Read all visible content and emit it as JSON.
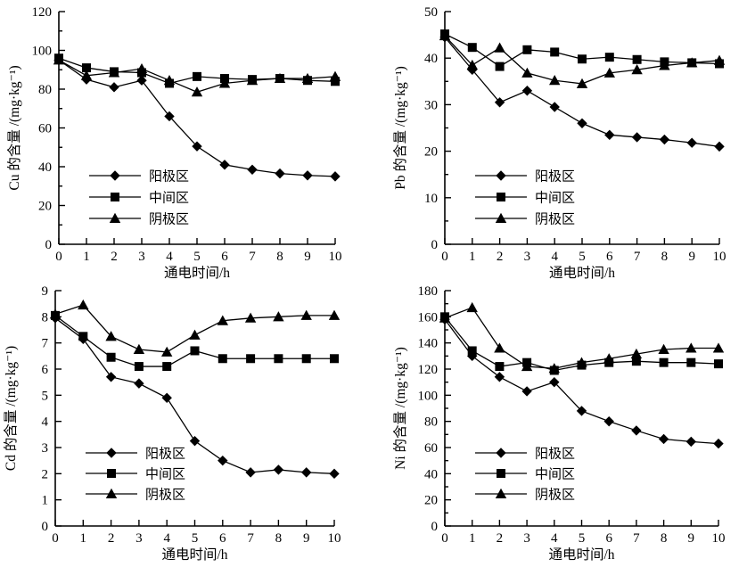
{
  "figure": {
    "xlabel": "通电时间/h",
    "legend_labels": [
      "阳极区",
      "中间区",
      "阴极区"
    ],
    "legend_markers": [
      "diamond",
      "square",
      "triangle"
    ]
  },
  "colors": {
    "foreground": "#000000",
    "background": "#ffffff"
  },
  "chart_data": [
    {
      "type": "line",
      "metal": "Cu",
      "ylabel": "Cu 的含量 /(mg·kg⁻¹)",
      "xlabel": "通电时间/h",
      "x": [
        0,
        1,
        2,
        3,
        4,
        5,
        6,
        7,
        8,
        9,
        10
      ],
      "xlim": [
        0,
        10
      ],
      "ylim": [
        0,
        120
      ],
      "ytick_step": 20,
      "y_minor_ticks": true,
      "grid": false,
      "legend_position": "inside lower-left",
      "series": [
        {
          "name": "阳极区",
          "marker": "diamond",
          "values": [
            95,
            85,
            81,
            84.5,
            66,
            50.5,
            41,
            38.5,
            36.5,
            35.5,
            35
          ]
        },
        {
          "name": "中间区",
          "marker": "square",
          "values": [
            96,
            91,
            89,
            88.5,
            83,
            86.5,
            85.5,
            85,
            85.5,
            84.5,
            84
          ]
        },
        {
          "name": "阴极区",
          "marker": "triangle",
          "values": [
            95,
            87,
            88.5,
            90.5,
            84.5,
            78.5,
            83,
            84.5,
            85.5,
            85.5,
            86.5
          ]
        }
      ]
    },
    {
      "type": "line",
      "metal": "Pb",
      "ylabel": "Pb 的含量 /(mg·kg⁻¹)",
      "xlabel": "通电时间/h",
      "x": [
        0,
        1,
        2,
        3,
        4,
        5,
        6,
        7,
        8,
        9,
        10
      ],
      "xlim": [
        0,
        10
      ],
      "ylim": [
        0,
        50
      ],
      "ytick_step": 10,
      "y_minor_ticks": true,
      "grid": false,
      "legend_position": "inside lower-left",
      "series": [
        {
          "name": "阳极区",
          "marker": "diamond",
          "values": [
            44.5,
            37.5,
            30.5,
            33,
            29.5,
            26,
            23.5,
            23,
            22.5,
            21.8,
            21
          ]
        },
        {
          "name": "中间区",
          "marker": "square",
          "values": [
            45.2,
            42.3,
            38.2,
            41.8,
            41.3,
            39.8,
            40.2,
            39.7,
            39.2,
            39,
            38.8
          ]
        },
        {
          "name": "阴极区",
          "marker": "triangle",
          "values": [
            44.8,
            38.5,
            42.2,
            36.8,
            35.2,
            34.5,
            36.8,
            37.5,
            38.4,
            39,
            39.5
          ]
        }
      ]
    },
    {
      "type": "line",
      "metal": "Cd",
      "ylabel": "Cd 的含量 /(mg·kg⁻¹)",
      "xlabel": "通电时间/h",
      "x": [
        0,
        1,
        2,
        3,
        4,
        5,
        6,
        7,
        8,
        9,
        10
      ],
      "xlim": [
        0,
        10
      ],
      "ylim": [
        0,
        9
      ],
      "ytick_step": 1,
      "y_minor_ticks": false,
      "grid": false,
      "legend_position": "inside lower-left",
      "series": [
        {
          "name": "阳极区",
          "marker": "diamond",
          "values": [
            7.95,
            7.15,
            5.7,
            5.45,
            4.9,
            3.25,
            2.5,
            2.05,
            2.15,
            2.05,
            2.0
          ]
        },
        {
          "name": "中间区",
          "marker": "square",
          "values": [
            8.05,
            7.25,
            6.45,
            6.1,
            6.1,
            6.7,
            6.4,
            6.4,
            6.4,
            6.4,
            6.4
          ]
        },
        {
          "name": "阴极区",
          "marker": "triangle",
          "values": [
            8.1,
            8.45,
            7.25,
            6.75,
            6.65,
            7.3,
            7.85,
            7.95,
            8.0,
            8.05,
            8.05
          ]
        }
      ]
    },
    {
      "type": "line",
      "metal": "Ni",
      "ylabel": "Ni 的含量 /(mg·kg⁻¹)",
      "xlabel": "通电时间/h",
      "x": [
        0,
        1,
        2,
        3,
        4,
        5,
        6,
        7,
        8,
        9,
        10
      ],
      "xlim": [
        0,
        10
      ],
      "ylim": [
        0,
        180
      ],
      "ytick_step": 20,
      "y_minor_ticks": true,
      "grid": false,
      "legend_position": "inside lower-left",
      "series": [
        {
          "name": "阳极区",
          "marker": "diamond",
          "values": [
            158,
            130,
            114,
            103,
            110,
            88,
            80,
            73,
            66.5,
            64.5,
            63
          ]
        },
        {
          "name": "中间区",
          "marker": "square",
          "values": [
            160,
            134,
            122,
            125,
            119,
            123,
            125,
            126,
            125,
            125,
            124
          ]
        },
        {
          "name": "阴极区",
          "marker": "triangle",
          "values": [
            159,
            167,
            136,
            122,
            120.5,
            125,
            128,
            131.5,
            135,
            136,
            136
          ]
        }
      ]
    }
  ]
}
